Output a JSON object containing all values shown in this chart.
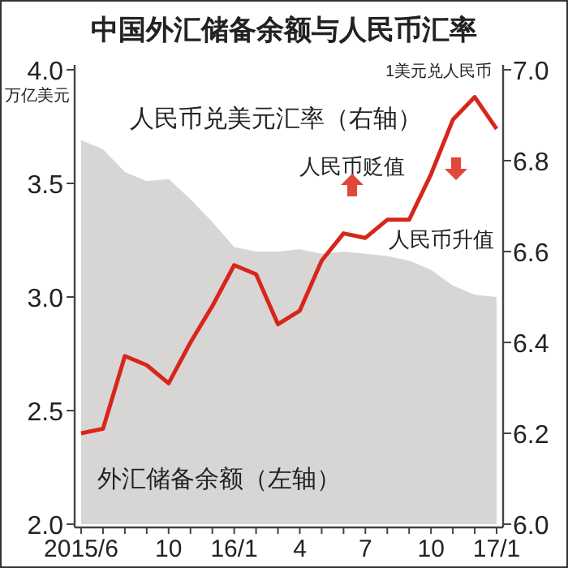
{
  "chart_data": {
    "type": "line",
    "title": "中国外汇储备余额与人民币汇率",
    "categories": [
      "2015/6",
      null,
      null,
      null,
      "10",
      null,
      null,
      "16/1",
      null,
      null,
      "4",
      null,
      null,
      "7",
      null,
      null,
      "10",
      null,
      null,
      "17/1"
    ],
    "series": [
      {
        "name": "外汇储备余额（左轴）",
        "type": "area",
        "axis": "y",
        "color": "#d8d6d5",
        "values": [
          3.69,
          3.65,
          3.55,
          3.51,
          3.52,
          3.43,
          3.33,
          3.22,
          3.2,
          3.2,
          3.21,
          3.19,
          3.2,
          3.19,
          3.18,
          3.16,
          3.12,
          3.05,
          3.01,
          3.0
        ]
      },
      {
        "name": "人民币兑美元汇率（右轴）",
        "type": "line",
        "axis": "y2",
        "color": "#d7261b",
        "values": [
          6.2,
          6.21,
          6.37,
          6.35,
          6.31,
          6.4,
          6.48,
          6.57,
          6.55,
          6.44,
          6.47,
          6.58,
          6.64,
          6.63,
          6.67,
          6.67,
          6.77,
          6.89,
          6.94,
          6.87
        ]
      }
    ],
    "ylabel": "万亿美元",
    "y2label": "1美元兑人民币",
    "ylim": [
      2,
      4
    ],
    "yticks": [
      {
        "value": 2,
        "label": "2.0"
      },
      2.5,
      {
        "value": 3,
        "label": "3.0"
      },
      3.5,
      {
        "value": 4,
        "label": "4.0"
      }
    ],
    "y2lim": [
      6,
      7
    ],
    "y2ticks": [
      {
        "value": 6,
        "label": "6.0"
      },
      6.2,
      6.4,
      6.6,
      6.8,
      {
        "value": 7,
        "label": "7.0"
      }
    ],
    "annotations": [
      "人民币贬值",
      "人民币升值"
    ]
  }
}
